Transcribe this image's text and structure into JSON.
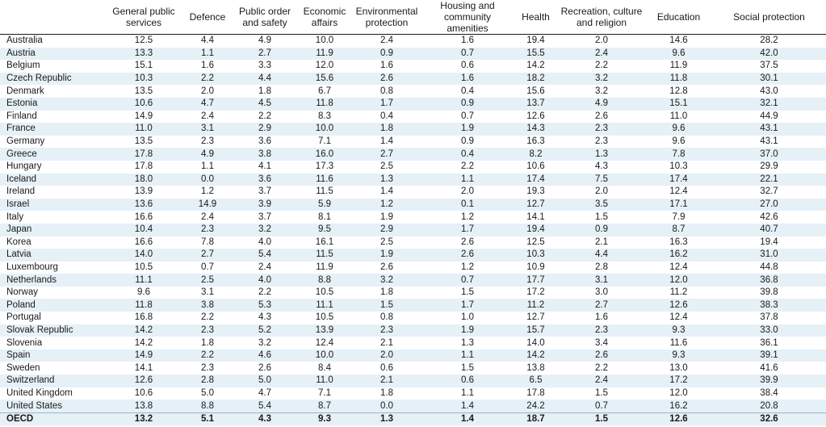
{
  "table": {
    "columns": [
      "General public services",
      "Defence",
      "Public order and safety",
      "Economic affairs",
      "Environmental protection",
      "Housing and community amenities",
      "Health",
      "Recreation, culture and religion",
      "Education",
      "Social protection"
    ],
    "rows": [
      {
        "country": "Australia",
        "values": [
          "12.5",
          "4.4",
          "4.9",
          "10.0",
          "2.4",
          "1.6",
          "19.4",
          "2.0",
          "14.6",
          "28.2"
        ]
      },
      {
        "country": "Austria",
        "values": [
          "13.3",
          "1.1",
          "2.7",
          "11.9",
          "0.9",
          "0.7",
          "15.5",
          "2.4",
          "9.6",
          "42.0"
        ]
      },
      {
        "country": "Belgium",
        "values": [
          "15.1",
          "1.6",
          "3.3",
          "12.0",
          "1.6",
          "0.6",
          "14.2",
          "2.2",
          "11.9",
          "37.5"
        ]
      },
      {
        "country": "Czech Republic",
        "values": [
          "10.3",
          "2.2",
          "4.4",
          "15.6",
          "2.6",
          "1.6",
          "18.2",
          "3.2",
          "11.8",
          "30.1"
        ]
      },
      {
        "country": "Denmark",
        "values": [
          "13.5",
          "2.0",
          "1.8",
          "6.7",
          "0.8",
          "0.4",
          "15.6",
          "3.2",
          "12.8",
          "43.0"
        ]
      },
      {
        "country": "Estonia",
        "values": [
          "10.6",
          "4.7",
          "4.5",
          "11.8",
          "1.7",
          "0.9",
          "13.7",
          "4.9",
          "15.1",
          "32.1"
        ]
      },
      {
        "country": "Finland",
        "values": [
          "14.9",
          "2.4",
          "2.2",
          "8.3",
          "0.4",
          "0.7",
          "12.6",
          "2.6",
          "11.0",
          "44.9"
        ]
      },
      {
        "country": "France",
        "values": [
          "11.0",
          "3.1",
          "2.9",
          "10.0",
          "1.8",
          "1.9",
          "14.3",
          "2.3",
          "9.6",
          "43.1"
        ]
      },
      {
        "country": "Germany",
        "values": [
          "13.5",
          "2.3",
          "3.6",
          "7.1",
          "1.4",
          "0.9",
          "16.3",
          "2.3",
          "9.6",
          "43.1"
        ]
      },
      {
        "country": "Greece",
        "values": [
          "17.8",
          "4.9",
          "3.8",
          "16.0",
          "2.7",
          "0.4",
          "8.2",
          "1.3",
          "7.8",
          "37.0"
        ]
      },
      {
        "country": "Hungary",
        "values": [
          "17.8",
          "1.1",
          "4.1",
          "17.3",
          "2.5",
          "2.2",
          "10.6",
          "4.3",
          "10.3",
          "29.9"
        ]
      },
      {
        "country": "Iceland",
        "values": [
          "18.0",
          "0.0",
          "3.6",
          "11.6",
          "1.3",
          "1.1",
          "17.4",
          "7.5",
          "17.4",
          "22.1"
        ]
      },
      {
        "country": "Ireland",
        "values": [
          "13.9",
          "1.2",
          "3.7",
          "11.5",
          "1.4",
          "2.0",
          "19.3",
          "2.0",
          "12.4",
          "32.7"
        ]
      },
      {
        "country": "Israel",
        "values": [
          "13.6",
          "14.9",
          "3.9",
          "5.9",
          "1.2",
          "0.1",
          "12.7",
          "3.5",
          "17.1",
          "27.0"
        ]
      },
      {
        "country": "Italy",
        "values": [
          "16.6",
          "2.4",
          "3.7",
          "8.1",
          "1.9",
          "1.2",
          "14.1",
          "1.5",
          "7.9",
          "42.6"
        ]
      },
      {
        "country": "Japan",
        "values": [
          "10.4",
          "2.3",
          "3.2",
          "9.5",
          "2.9",
          "1.7",
          "19.4",
          "0.9",
          "8.7",
          "40.7"
        ]
      },
      {
        "country": "Korea",
        "values": [
          "16.6",
          "7.8",
          "4.0",
          "16.1",
          "2.5",
          "2.6",
          "12.5",
          "2.1",
          "16.3",
          "19.4"
        ]
      },
      {
        "country": "Latvia",
        "values": [
          "14.0",
          "2.7",
          "5.4",
          "11.5",
          "1.9",
          "2.6",
          "10.3",
          "4.4",
          "16.2",
          "31.0"
        ]
      },
      {
        "country": "Luxembourg",
        "values": [
          "10.5",
          "0.7",
          "2.4",
          "11.9",
          "2.6",
          "1.2",
          "10.9",
          "2.8",
          "12.4",
          "44.8"
        ]
      },
      {
        "country": "Netherlands",
        "values": [
          "11.1",
          "2.5",
          "4.0",
          "8.8",
          "3.2",
          "0.7",
          "17.7",
          "3.1",
          "12.0",
          "36.8"
        ]
      },
      {
        "country": "Norway",
        "values": [
          "9.6",
          "3.1",
          "2.2",
          "10.5",
          "1.8",
          "1.5",
          "17.2",
          "3.0",
          "11.2",
          "39.8"
        ]
      },
      {
        "country": "Poland",
        "values": [
          "11.8",
          "3.8",
          "5.3",
          "11.1",
          "1.5",
          "1.7",
          "11.2",
          "2.7",
          "12.6",
          "38.3"
        ]
      },
      {
        "country": "Portugal",
        "values": [
          "16.8",
          "2.2",
          "4.3",
          "10.5",
          "0.8",
          "1.0",
          "12.7",
          "1.6",
          "12.4",
          "37.8"
        ]
      },
      {
        "country": "Slovak Republic",
        "values": [
          "14.2",
          "2.3",
          "5.2",
          "13.9",
          "2.3",
          "1.9",
          "15.7",
          "2.3",
          "9.3",
          "33.0"
        ]
      },
      {
        "country": "Slovenia",
        "values": [
          "14.2",
          "1.8",
          "3.2",
          "12.4",
          "2.1",
          "1.3",
          "14.0",
          "3.4",
          "11.6",
          "36.1"
        ]
      },
      {
        "country": "Spain",
        "values": [
          "14.9",
          "2.2",
          "4.6",
          "10.0",
          "2.0",
          "1.1",
          "14.2",
          "2.6",
          "9.3",
          "39.1"
        ]
      },
      {
        "country": "Sweden",
        "values": [
          "14.1",
          "2.3",
          "2.6",
          "8.4",
          "0.6",
          "1.5",
          "13.8",
          "2.2",
          "13.0",
          "41.6"
        ]
      },
      {
        "country": "Switzerland",
        "values": [
          "12.6",
          "2.8",
          "5.0",
          "11.0",
          "2.1",
          "0.6",
          "6.5",
          "2.4",
          "17.2",
          "39.9"
        ]
      },
      {
        "country": "United Kingdom",
        "values": [
          "10.6",
          "5.0",
          "4.7",
          "7.1",
          "1.8",
          "1.1",
          "17.8",
          "1.5",
          "12.0",
          "38.4"
        ]
      },
      {
        "country": "United States",
        "values": [
          "13.8",
          "8.8",
          "5.4",
          "8.7",
          "0.0",
          "1.4",
          "24.2",
          "0.7",
          "16.2",
          "20.8"
        ]
      }
    ],
    "total": {
      "country": "OECD",
      "values": [
        "13.2",
        "5.1",
        "4.3",
        "9.3",
        "1.3",
        "1.4",
        "18.7",
        "1.5",
        "12.6",
        "32.6"
      ]
    }
  }
}
